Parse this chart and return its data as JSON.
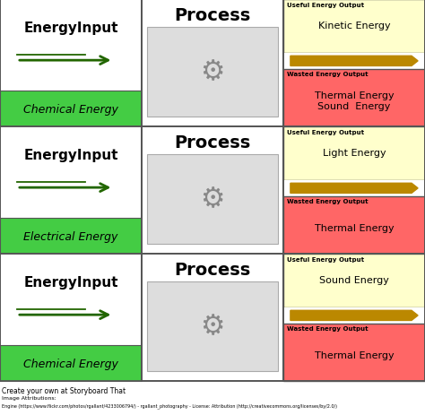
{
  "rows": [
    {
      "input_label": "EnergyInput",
      "input_sub": "Chemical Energy",
      "process_label": "Process",
      "useful_label": "Useful Energy Output",
      "useful_energy": "Kinetic Energy",
      "wasted_label": "Wasted Energy Output",
      "wasted_energy": "Thermal Energy\nSound  Energy"
    },
    {
      "input_label": "EnergyInput",
      "input_sub": "Electrical Energy",
      "process_label": "Process",
      "useful_label": "Useful Energy Output",
      "useful_energy": "Light Energy",
      "wasted_label": "Wasted Energy Output",
      "wasted_energy": "Thermal Energy"
    },
    {
      "input_label": "EnergyInput",
      "input_sub": "Chemical Energy",
      "process_label": "Process",
      "useful_label": "Useful Energy Output",
      "useful_energy": "Sound Energy",
      "wasted_label": "Wasted Energy Output",
      "wasted_energy": "Thermal Energy"
    }
  ],
  "green_color": "#44cc44",
  "yellow_color": "#ffffcc",
  "red_color": "#ff6666",
  "white_color": "#ffffff",
  "arrow_color": "#226600",
  "output_arrow_color": "#bb8800",
  "border_color": "#555555",
  "input_font_size": 11,
  "process_font_size": 14,
  "useful_label_font_size": 5,
  "energy_font_size": 8,
  "sub_font_size": 9,
  "footer_text": "Create your own at Storyboard That",
  "footer2_text": "Image Attributions:",
  "footer3_text": "Engine (https://www.flickr.com/photos/rgallant/4233006794/) - rgallant_photography - License: Attribution (http://creativecommons.org/licenses/by/2.0/)"
}
